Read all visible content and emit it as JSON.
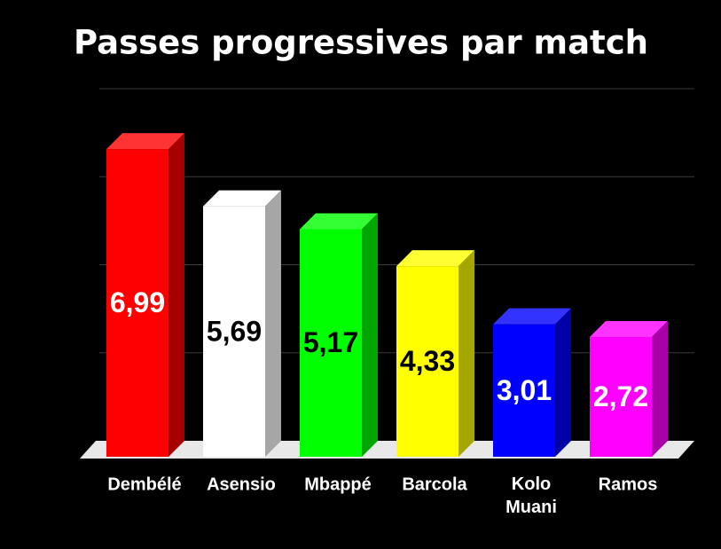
{
  "chart_data": {
    "type": "bar3d",
    "title": "Passes progressives par match",
    "categories": [
      "Dembélé",
      "Asensio",
      "Mbappé",
      "Barcola",
      "Kolo Muani",
      "Ramos"
    ],
    "values": [
      6.99,
      5.69,
      5.17,
      4.33,
      3.01,
      2.72
    ],
    "value_labels": [
      "6,99",
      "5,69",
      "5,17",
      "4,33",
      "3,01",
      "2,72"
    ],
    "colors": [
      "#ff0000",
      "#ffffff",
      "#00ff00",
      "#ffff00",
      "#0000ff",
      "#ff00ff"
    ],
    "ylim": [
      0,
      8
    ],
    "yticks": [
      0,
      2,
      4,
      6,
      8
    ],
    "grid": true
  }
}
